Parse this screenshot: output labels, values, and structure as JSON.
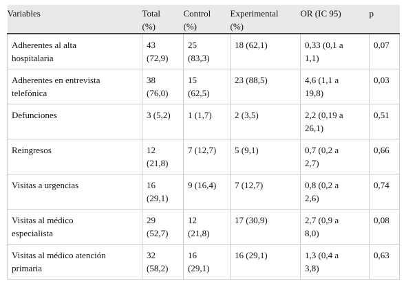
{
  "table": {
    "headers": [
      [
        "Variables"
      ],
      [
        "Total",
        "(%)"
      ],
      [
        "Control",
        "(%)"
      ],
      [
        "Experimental",
        "(%)"
      ],
      [
        "OR (IC 95)"
      ],
      [
        "p"
      ]
    ],
    "rows": [
      [
        [
          "Adherentes al alta",
          "hospitalaria"
        ],
        [
          "43",
          "(72,9)"
        ],
        [
          "25",
          "(83,3)"
        ],
        [
          "18 (62,1)"
        ],
        [
          "0,33 (0,1 a",
          "1,1)"
        ],
        [
          "0,07"
        ]
      ],
      [
        [
          "Adherentes en entrevista",
          "telefónica"
        ],
        [
          "38",
          "(76,0)"
        ],
        [
          "15",
          "(62,5)"
        ],
        [
          "23 (88,5)"
        ],
        [
          "4,6 (1,1 a",
          "19,8)"
        ],
        [
          "0,03"
        ]
      ],
      [
        [
          "Defunciones"
        ],
        [
          "3 (5,2)"
        ],
        [
          "1 (1,7)"
        ],
        [
          "2 (3,5)"
        ],
        [
          "2,2 (0,19 a",
          "26,1)"
        ],
        [
          "0,51"
        ]
      ],
      [
        [
          "Reingresos"
        ],
        [
          "12",
          "(21,8)"
        ],
        [
          "7 (12,7)"
        ],
        [
          "5 (9,1)"
        ],
        [
          "0,7 (0,2 a",
          "2,7)"
        ],
        [
          "0,66"
        ]
      ],
      [
        [
          "Visitas a urgencias"
        ],
        [
          "16",
          "(29,1)"
        ],
        [
          "9 (16,4)"
        ],
        [
          "7 (12,7)"
        ],
        [
          "0,8 (0,2 a",
          "2,6)"
        ],
        [
          "0,74"
        ]
      ],
      [
        [
          "Visitas al médico",
          "especialista"
        ],
        [
          "29",
          "(52,7)"
        ],
        [
          "12",
          "(21,8)"
        ],
        [
          "17 (30,9)"
        ],
        [
          "2,7 (0,9 a",
          "8,0)"
        ],
        [
          "0,08"
        ]
      ],
      [
        [
          "Visitas al médico atención",
          "primaria"
        ],
        [
          "32",
          "(58,2)"
        ],
        [
          "16",
          "(29,1)"
        ],
        [
          "16 (29,1)"
        ],
        [
          "1,3 (0,4 a",
          "3,8)"
        ],
        [
          "0,63"
        ]
      ]
    ]
  }
}
